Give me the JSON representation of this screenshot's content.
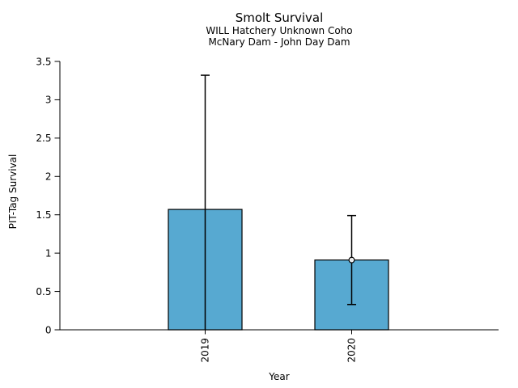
{
  "chart_data": {
    "type": "bar",
    "title": "Smolt Survival",
    "subtitle_lines": [
      "WILL Hatchery Unknown Coho",
      "McNary Dam - John Day Dam"
    ],
    "xlabel": "Year",
    "ylabel": "PIT-Tag Survival",
    "categories": [
      "2019",
      "2020"
    ],
    "values": [
      1.57,
      0.91
    ],
    "error_bars": [
      {
        "low": 0.0,
        "high": 3.32,
        "cap_low": false,
        "cap_high": true,
        "point_marker": false
      },
      {
        "low": 0.33,
        "high": 1.49,
        "cap_low": true,
        "cap_high": true,
        "point_marker": true
      }
    ],
    "ylim": [
      0,
      3.5
    ],
    "yticks": [
      0,
      0.5,
      1,
      1.5,
      2,
      2.5,
      3,
      3.5
    ],
    "ytick_labels": [
      "0",
      "0.5",
      "1",
      "1.5",
      "2",
      "2.5",
      "3",
      "3.5"
    ],
    "grid": false,
    "legend": null,
    "colors": {
      "bar_fill": "#57A9D1",
      "bar_edge": "#000000",
      "error": "#000000",
      "marker_fill": "#ffffff",
      "axis": "#000000",
      "text": "#000000",
      "background": "#ffffff"
    }
  }
}
